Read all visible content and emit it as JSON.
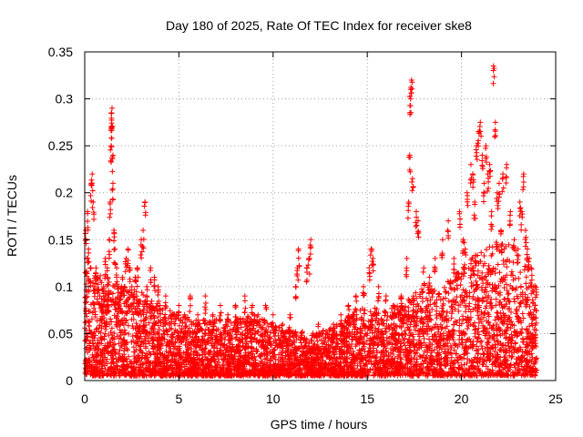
{
  "chart_data": {
    "type": "scatter",
    "title": "Day 180 of 2025, Rate Of TEC Index for receiver ske8",
    "xlabel": "GPS time / hours",
    "ylabel": "ROTI / TECUs",
    "xlim": [
      0,
      25
    ],
    "ylim": [
      0,
      0.35
    ],
    "xticks": [
      0,
      5,
      10,
      15,
      20,
      25
    ],
    "xtick_labels": [
      "0",
      "5",
      "10",
      "15",
      "20",
      "25"
    ],
    "yticks": [
      0,
      0.05,
      0.1,
      0.15,
      0.2,
      0.25,
      0.3,
      0.35
    ],
    "ytick_labels": [
      "0",
      "0.05",
      "0.1",
      "0.15",
      "0.2",
      "0.25",
      "0.3",
      "0.35"
    ],
    "grid": true,
    "marker": "+",
    "color": "#ff0000",
    "series": [
      {
        "name": "ROTI",
        "points": [
          [
            0.05,
            0.16
          ],
          [
            0.1,
            0.13
          ],
          [
            0.15,
            0.18
          ],
          [
            0.2,
            0.14
          ],
          [
            0.3,
            0.12
          ],
          [
            0.35,
            0.21
          ],
          [
            0.4,
            0.22
          ],
          [
            0.45,
            0.19
          ],
          [
            0.5,
            0.1
          ],
          [
            0.6,
            0.12
          ],
          [
            0.7,
            0.11
          ],
          [
            0.8,
            0.09
          ],
          [
            0.9,
            0.08
          ],
          [
            1.0,
            0.1
          ],
          [
            1.1,
            0.13
          ],
          [
            1.2,
            0.12
          ],
          [
            1.3,
            0.15
          ],
          [
            1.35,
            0.19
          ],
          [
            1.4,
            0.25
          ],
          [
            1.4,
            0.27
          ],
          [
            1.42,
            0.285
          ],
          [
            1.45,
            0.29
          ],
          [
            1.5,
            0.24
          ],
          [
            1.5,
            0.21
          ],
          [
            1.55,
            0.16
          ],
          [
            1.6,
            0.14
          ],
          [
            1.7,
            0.12
          ],
          [
            1.8,
            0.1
          ],
          [
            1.9,
            0.09
          ],
          [
            2.0,
            0.11
          ],
          [
            2.1,
            0.1
          ],
          [
            2.2,
            0.13
          ],
          [
            2.3,
            0.14
          ],
          [
            2.4,
            0.12
          ],
          [
            2.5,
            0.1
          ],
          [
            2.6,
            0.09
          ],
          [
            2.7,
            0.11
          ],
          [
            2.8,
            0.12
          ],
          [
            3.0,
            0.15
          ],
          [
            3.1,
            0.16
          ],
          [
            3.2,
            0.19
          ],
          [
            3.3,
            0.1
          ],
          [
            3.5,
            0.12
          ],
          [
            3.7,
            0.11
          ],
          [
            3.9,
            0.1
          ],
          [
            4.0,
            0.08
          ],
          [
            4.3,
            0.09
          ],
          [
            4.6,
            0.07
          ],
          [
            5.0,
            0.08
          ],
          [
            5.3,
            0.07
          ],
          [
            5.6,
            0.09
          ],
          [
            6.0,
            0.07
          ],
          [
            6.4,
            0.09
          ],
          [
            6.8,
            0.07
          ],
          [
            7.2,
            0.08
          ],
          [
            7.6,
            0.07
          ],
          [
            8.0,
            0.08
          ],
          [
            8.5,
            0.09
          ],
          [
            8.9,
            0.08
          ],
          [
            9.2,
            0.07
          ],
          [
            9.6,
            0.08
          ],
          [
            10.0,
            0.07
          ],
          [
            10.5,
            0.06
          ],
          [
            10.9,
            0.07
          ],
          [
            11.2,
            0.1
          ],
          [
            11.3,
            0.12
          ],
          [
            11.35,
            0.14
          ],
          [
            11.8,
            0.12
          ],
          [
            11.9,
            0.13
          ],
          [
            12.0,
            0.15
          ],
          [
            12.4,
            0.06
          ],
          [
            12.8,
            0.05
          ],
          [
            13.2,
            0.06
          ],
          [
            13.6,
            0.07
          ],
          [
            14.0,
            0.08
          ],
          [
            14.4,
            0.09
          ],
          [
            14.8,
            0.1
          ],
          [
            15.1,
            0.12
          ],
          [
            15.2,
            0.14
          ],
          [
            15.3,
            0.13
          ],
          [
            15.6,
            0.1
          ],
          [
            16.0,
            0.09
          ],
          [
            16.4,
            0.08
          ],
          [
            16.8,
            0.09
          ],
          [
            17.1,
            0.13
          ],
          [
            17.2,
            0.19
          ],
          [
            17.25,
            0.24
          ],
          [
            17.3,
            0.3
          ],
          [
            17.3,
            0.31
          ],
          [
            17.35,
            0.32
          ],
          [
            17.4,
            0.215
          ],
          [
            17.6,
            0.18
          ],
          [
            17.7,
            0.17
          ],
          [
            18.0,
            0.12
          ],
          [
            18.3,
            0.11
          ],
          [
            18.6,
            0.13
          ],
          [
            19.0,
            0.15
          ],
          [
            19.3,
            0.17
          ],
          [
            19.6,
            0.13
          ],
          [
            19.9,
            0.18
          ],
          [
            20.1,
            0.15
          ],
          [
            20.2,
            0.14
          ],
          [
            20.3,
            0.2
          ],
          [
            20.5,
            0.23
          ],
          [
            20.6,
            0.22
          ],
          [
            20.7,
            0.19
          ],
          [
            20.8,
            0.25
          ],
          [
            20.9,
            0.265
          ],
          [
            21.0,
            0.275
          ],
          [
            21.1,
            0.24
          ],
          [
            21.2,
            0.21
          ],
          [
            21.3,
            0.25
          ],
          [
            21.4,
            0.22
          ],
          [
            21.5,
            0.23
          ],
          [
            21.6,
            0.18
          ],
          [
            21.7,
            0.335
          ],
          [
            21.8,
            0.275
          ],
          [
            21.9,
            0.2
          ],
          [
            22.0,
            0.21
          ],
          [
            22.1,
            0.16
          ],
          [
            22.2,
            0.22
          ],
          [
            22.4,
            0.23
          ],
          [
            22.6,
            0.18
          ],
          [
            22.8,
            0.15
          ],
          [
            23.0,
            0.14
          ],
          [
            23.1,
            0.19
          ],
          [
            23.2,
            0.18
          ],
          [
            23.3,
            0.22
          ],
          [
            23.4,
            0.16
          ],
          [
            23.5,
            0.14
          ],
          [
            23.6,
            0.13
          ],
          [
            23.7,
            0.12
          ],
          [
            23.8,
            0.1
          ],
          [
            23.9,
            0.08
          ]
        ],
        "dense_band": {
          "description": "dense cloud of points covering the whole day",
          "envelope_x": [
            0,
            1,
            2,
            3,
            4,
            5,
            6,
            7,
            8,
            9,
            10,
            11,
            12,
            13,
            14,
            15,
            16,
            17,
            18,
            19,
            20,
            21,
            22,
            23,
            24
          ],
          "envelope_ymax": [
            0.12,
            0.11,
            0.1,
            0.095,
            0.08,
            0.07,
            0.065,
            0.065,
            0.065,
            0.07,
            0.06,
            0.055,
            0.05,
            0.055,
            0.07,
            0.08,
            0.075,
            0.085,
            0.1,
            0.1,
            0.12,
            0.14,
            0.15,
            0.14,
            0.1
          ],
          "ymin": 0.005
        }
      }
    ]
  }
}
